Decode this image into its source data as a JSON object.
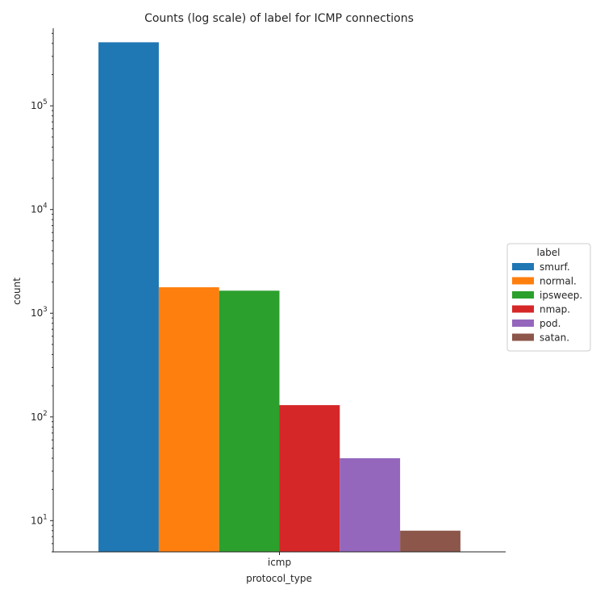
{
  "chart_data": {
    "type": "bar",
    "title": "Counts (log scale) of label for ICMP connections",
    "xlabel": "protocol_type",
    "ylabel": "count",
    "yscale": "log",
    "ylim": [
      5,
      560000
    ],
    "categories": [
      "icmp"
    ],
    "series": [
      {
        "name": "smurf.",
        "values": [
          410000
        ],
        "color": "#1f77b4"
      },
      {
        "name": "normal.",
        "values": [
          1780
        ],
        "color": "#ff7f0e"
      },
      {
        "name": "ipsweep.",
        "values": [
          1650
        ],
        "color": "#2ca02c"
      },
      {
        "name": "nmap.",
        "values": [
          130
        ],
        "color": "#d62728"
      },
      {
        "name": "pod.",
        "values": [
          40
        ],
        "color": "#9467bd"
      },
      {
        "name": "satan.",
        "values": [
          8
        ],
        "color": "#8c564b"
      }
    ],
    "y_major_ticks": [
      {
        "base": "10",
        "exp": "1",
        "value": 10
      },
      {
        "base": "10",
        "exp": "2",
        "value": 100
      },
      {
        "base": "10",
        "exp": "3",
        "value": 1000
      },
      {
        "base": "10",
        "exp": "4",
        "value": 10000
      },
      {
        "base": "10",
        "exp": "5",
        "value": 100000
      }
    ],
    "legend": {
      "title": "label",
      "position": "center-right"
    }
  }
}
